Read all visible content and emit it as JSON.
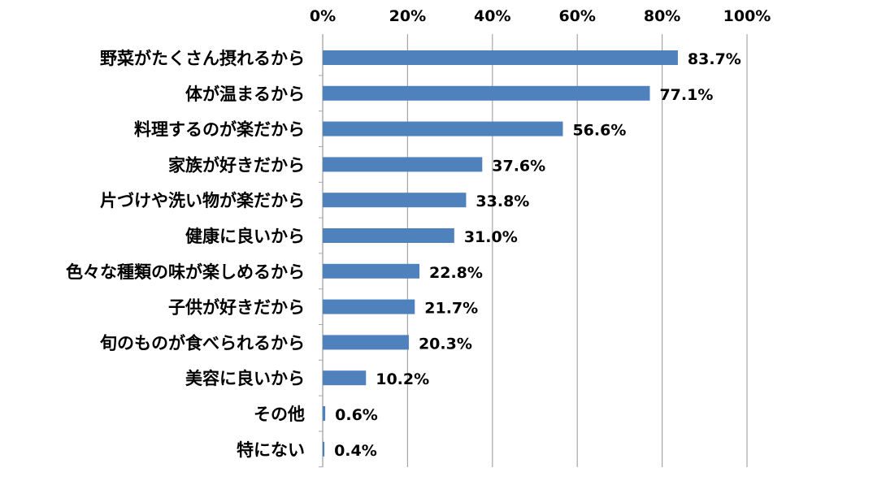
{
  "chart_data": {
    "type": "bar",
    "orientation": "horizontal",
    "categories": [
      "野菜がたくさん摂れるから",
      "体が温まるから",
      "料理するのが楽だから",
      "家族が好きだから",
      "片づけや洗い物が楽だから",
      "健康に良いから",
      "色々な種類の味が楽しめるから",
      "子供が好きだから",
      "旬のものが食べられるから",
      "美容に良いから",
      "その他",
      "特にない"
    ],
    "values": [
      83.7,
      77.1,
      56.6,
      37.6,
      33.8,
      31.0,
      22.8,
      21.7,
      20.3,
      10.2,
      0.6,
      0.4
    ],
    "value_labels": [
      "83.7%",
      "77.1%",
      "56.6%",
      "37.6%",
      "33.8%",
      "31.0%",
      "22.8%",
      "21.7%",
      "20.3%",
      "10.2%",
      "0.6%",
      "0.4%"
    ],
    "title": "",
    "xlabel": "",
    "ylabel": "",
    "xlim": [
      0,
      100
    ],
    "x_ticks": [
      0,
      20,
      40,
      60,
      80,
      100
    ],
    "x_tick_labels": [
      "0%",
      "20%",
      "40%",
      "60%",
      "80%",
      "100%"
    ],
    "x_axis_position": "top",
    "grid": "vertical",
    "legend": "none",
    "bar_color": "#4F81BD",
    "grid_color": "#A6A6A6"
  }
}
